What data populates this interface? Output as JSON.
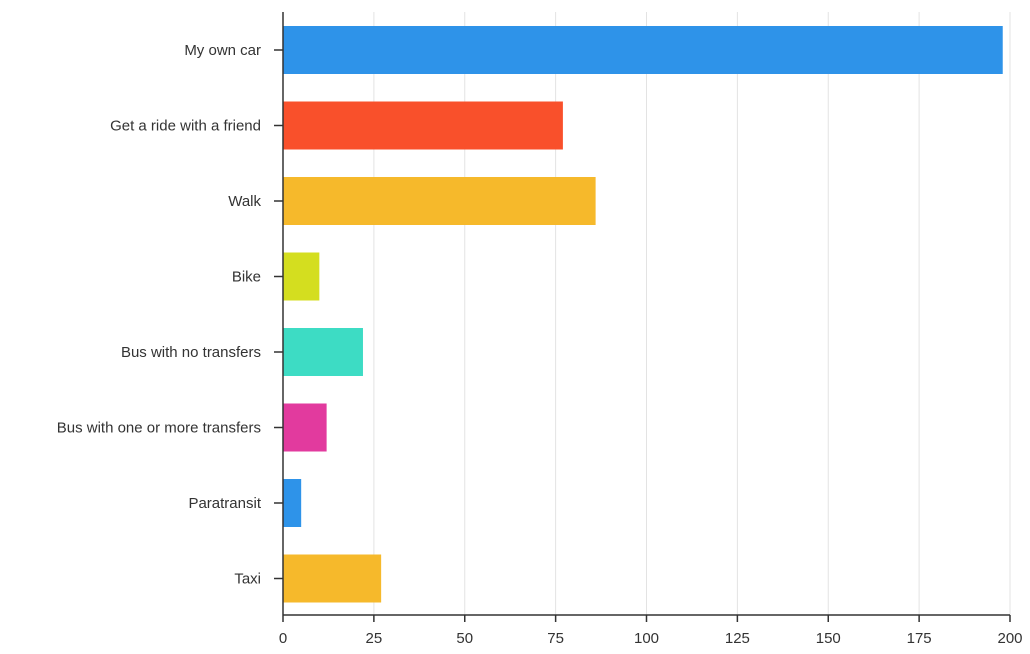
{
  "chart_data": {
    "type": "bar",
    "orientation": "horizontal",
    "categories": [
      "My own car",
      "Get a ride with a friend",
      "Walk",
      "Bike",
      "Bus with no transfers",
      "Bus with one or more transfers",
      "Paratransit",
      "Taxi"
    ],
    "values": [
      198,
      77,
      86,
      10,
      22,
      12,
      5,
      27
    ],
    "colors": [
      "#2e93e9",
      "#f9502b",
      "#f6b92b",
      "#d4de1f",
      "#3ddcc4",
      "#e23a9e",
      "#2e93e9",
      "#f6b92b"
    ],
    "title": "",
    "xlabel": "",
    "ylabel": "",
    "xlim": [
      0,
      200
    ],
    "x_ticks": [
      0,
      25,
      50,
      75,
      100,
      125,
      150,
      175,
      200
    ],
    "grid": true,
    "legend": "none"
  }
}
